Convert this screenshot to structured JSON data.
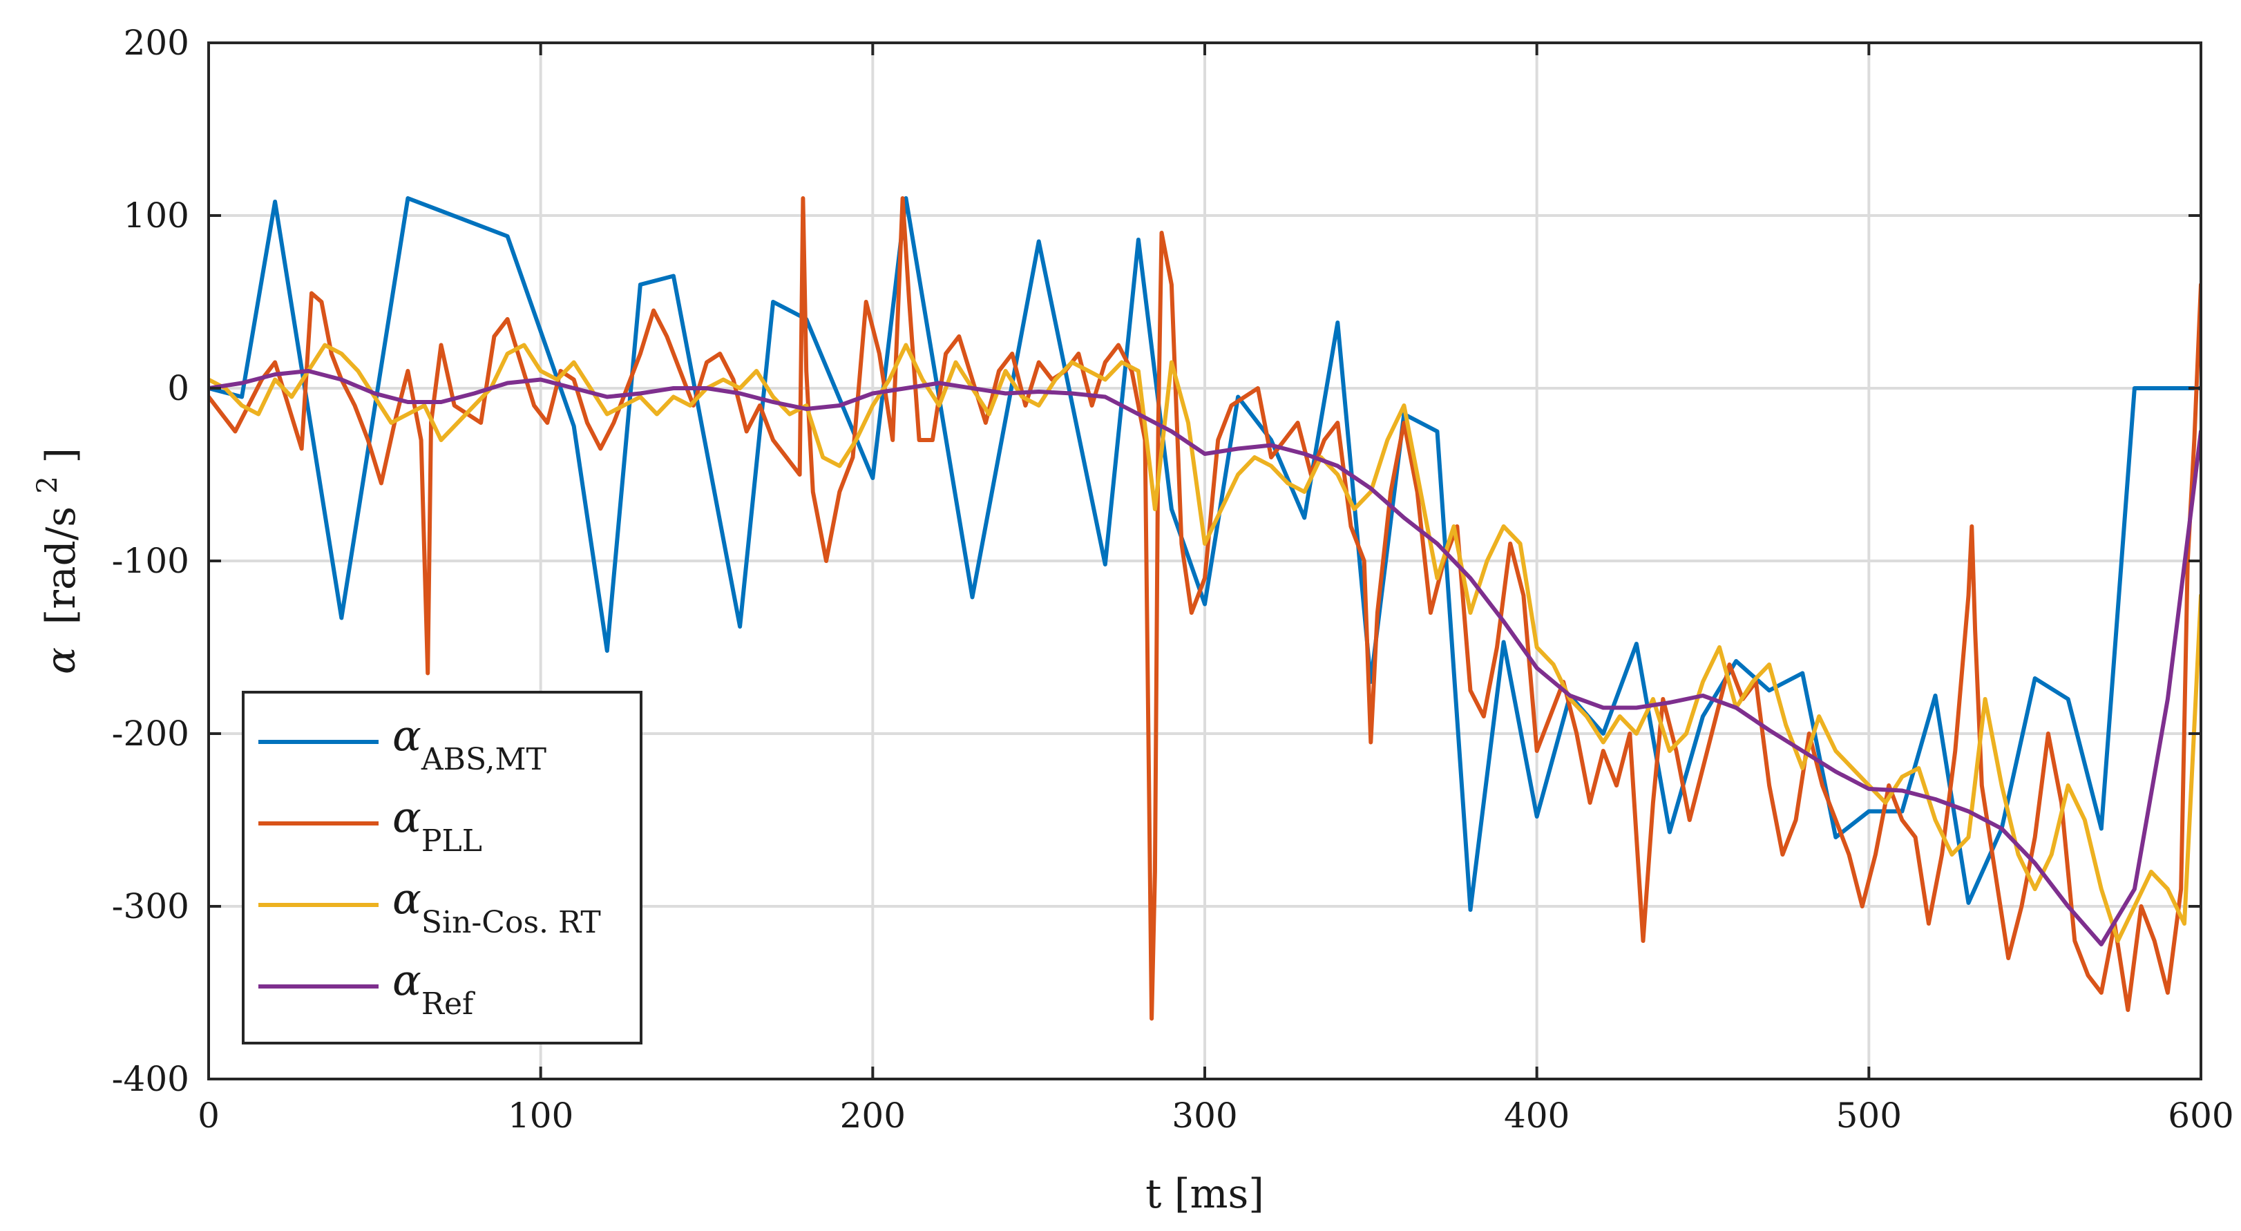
{
  "chart_data": {
    "type": "line",
    "title": "",
    "xlabel": "t [ms]",
    "ylabel": "α [rad/s²]",
    "ylabel_symbol": "α",
    "ylabel_units": "[rad/s",
    "ylabel_sup": "2",
    "ylabel_close": "]",
    "xlim": [
      0,
      600
    ],
    "ylim": [
      -400,
      200
    ],
    "xticks": [
      0,
      100,
      200,
      300,
      400,
      500,
      600
    ],
    "yticks": [
      200,
      100,
      0,
      -100,
      -200,
      -300,
      -400
    ],
    "xtick_labels": [
      "0",
      "100",
      "200",
      "300",
      "400",
      "500",
      "600"
    ],
    "ytick_labels": [
      "200",
      "100",
      "0",
      "-100",
      "-200",
      "-300",
      "-400"
    ],
    "grid": true,
    "legend_position": "bottom-left",
    "series": [
      {
        "name": "α ABS,MT",
        "symbol": "α",
        "subscript": "ABS,MT",
        "color": "#0072BD",
        "x": [
          0,
          10,
          20,
          40,
          60,
          90,
          110,
          120,
          130,
          140,
          160,
          170,
          180,
          200,
          210,
          230,
          250,
          270,
          280,
          290,
          300,
          310,
          320,
          330,
          340,
          350,
          360,
          370,
          380,
          390,
          400,
          410,
          420,
          430,
          440,
          450,
          460,
          470,
          480,
          490,
          500,
          510,
          520,
          530,
          540,
          550,
          560,
          570,
          580,
          590,
          600
        ],
        "y": [
          0,
          -5,
          108,
          -133,
          110,
          88,
          -22,
          -152,
          60,
          65,
          -138,
          50,
          40,
          -52,
          110,
          -121,
          85,
          -102,
          86,
          -70,
          -125,
          -5,
          -30,
          -75,
          38,
          -170,
          -15,
          -25,
          -302,
          -147,
          -248,
          -178,
          -200,
          -148,
          -257,
          -190,
          -158,
          -175,
          -165,
          -260,
          -245,
          -245,
          -178,
          -298,
          -255,
          -168,
          -180,
          -255,
          0,
          0,
          0
        ]
      },
      {
        "name": "α PLL",
        "symbol": "α",
        "subscript": "PLL",
        "color": "#D95319",
        "x": [
          0,
          4,
          8,
          12,
          16,
          20,
          24,
          28,
          31,
          34,
          37,
          40,
          44,
          48,
          52,
          56,
          60,
          64,
          66,
          67,
          70,
          74,
          78,
          82,
          86,
          90,
          94,
          98,
          102,
          106,
          110,
          114,
          118,
          122,
          126,
          130,
          134,
          138,
          142,
          146,
          150,
          154,
          158,
          162,
          166,
          170,
          174,
          178,
          179,
          180,
          182,
          186,
          190,
          194,
          198,
          202,
          206,
          209,
          211,
          214,
          218,
          222,
          226,
          230,
          234,
          238,
          242,
          246,
          250,
          254,
          258,
          262,
          266,
          270,
          274,
          278,
          282,
          284,
          285,
          286,
          287,
          290,
          293,
          296,
          300,
          304,
          308,
          312,
          316,
          320,
          324,
          328,
          332,
          336,
          340,
          344,
          348,
          350,
          352,
          356,
          360,
          364,
          368,
          372,
          376,
          380,
          384,
          388,
          392,
          396,
          400,
          404,
          408,
          412,
          416,
          420,
          424,
          428,
          432,
          435,
          438,
          442,
          446,
          450,
          454,
          458,
          462,
          466,
          470,
          474,
          478,
          482,
          486,
          490,
          494,
          498,
          502,
          506,
          510,
          514,
          518,
          522,
          526,
          530,
          531,
          532,
          534,
          538,
          542,
          546,
          550,
          554,
          558,
          562,
          566,
          570,
          574,
          578,
          582,
          586,
          590,
          594,
          596,
          598,
          600
        ],
        "y": [
          -5,
          -15,
          -25,
          -10,
          5,
          15,
          -10,
          -35,
          55,
          50,
          20,
          5,
          -10,
          -30,
          -55,
          -20,
          10,
          -30,
          -165,
          -20,
          25,
          -10,
          -15,
          -20,
          30,
          40,
          15,
          -10,
          -20,
          10,
          5,
          -20,
          -35,
          -20,
          0,
          20,
          45,
          30,
          10,
          -10,
          15,
          20,
          5,
          -25,
          -10,
          -30,
          -40,
          -50,
          110,
          10,
          -60,
          -100,
          -60,
          -40,
          50,
          20,
          -30,
          110,
          50,
          -30,
          -30,
          20,
          30,
          5,
          -20,
          10,
          20,
          -10,
          15,
          5,
          10,
          20,
          -10,
          15,
          25,
          10,
          -30,
          -365,
          -280,
          -20,
          90,
          60,
          -90,
          -130,
          -110,
          -30,
          -10,
          -5,
          0,
          -40,
          -30,
          -20,
          -50,
          -30,
          -20,
          -80,
          -100,
          -205,
          -130,
          -60,
          -20,
          -60,
          -130,
          -100,
          -80,
          -175,
          -190,
          -150,
          -90,
          -120,
          -210,
          -190,
          -170,
          -200,
          -240,
          -210,
          -230,
          -200,
          -320,
          -240,
          -180,
          -210,
          -250,
          -220,
          -190,
          -160,
          -180,
          -170,
          -230,
          -270,
          -250,
          -200,
          -230,
          -250,
          -270,
          -300,
          -270,
          -230,
          -250,
          -260,
          -310,
          -270,
          -210,
          -120,
          -80,
          -140,
          -230,
          -280,
          -330,
          -300,
          -260,
          -200,
          -240,
          -320,
          -340,
          -350,
          -310,
          -360,
          -300,
          -320,
          -350,
          -290,
          -100,
          -30,
          60
        ]
      },
      {
        "name": "α Sin-Cos. RT",
        "symbol": "α",
        "subscript": "Sin-Cos. RT",
        "color": "#EDB120",
        "x": [
          0,
          5,
          10,
          15,
          20,
          25,
          30,
          35,
          40,
          45,
          50,
          55,
          60,
          65,
          70,
          75,
          80,
          85,
          90,
          95,
          100,
          105,
          110,
          115,
          120,
          125,
          130,
          135,
          140,
          145,
          150,
          155,
          160,
          165,
          170,
          175,
          180,
          185,
          190,
          195,
          200,
          205,
          210,
          215,
          220,
          225,
          230,
          235,
          240,
          245,
          250,
          255,
          260,
          265,
          270,
          275,
          280,
          285,
          290,
          295,
          300,
          305,
          310,
          315,
          320,
          325,
          330,
          335,
          340,
          345,
          350,
          355,
          360,
          365,
          370,
          375,
          380,
          385,
          390,
          395,
          400,
          405,
          410,
          415,
          420,
          425,
          430,
          435,
          440,
          445,
          450,
          455,
          460,
          465,
          470,
          475,
          480,
          485,
          490,
          495,
          500,
          505,
          510,
          515,
          520,
          525,
          530,
          535,
          540,
          545,
          550,
          555,
          560,
          565,
          570,
          575,
          580,
          585,
          590,
          595,
          600
        ],
        "y": [
          5,
          0,
          -10,
          -15,
          5,
          -5,
          10,
          25,
          20,
          10,
          -5,
          -20,
          -15,
          -10,
          -30,
          -20,
          -10,
          0,
          20,
          25,
          10,
          5,
          15,
          0,
          -15,
          -10,
          -5,
          -15,
          -5,
          -10,
          0,
          5,
          0,
          10,
          -5,
          -15,
          -10,
          -40,
          -45,
          -30,
          -10,
          5,
          25,
          5,
          -10,
          15,
          0,
          -15,
          10,
          -5,
          -10,
          5,
          15,
          10,
          5,
          15,
          10,
          -70,
          15,
          -20,
          -90,
          -70,
          -50,
          -40,
          -45,
          -55,
          -60,
          -40,
          -50,
          -70,
          -60,
          -30,
          -10,
          -60,
          -110,
          -80,
          -130,
          -100,
          -80,
          -90,
          -150,
          -160,
          -180,
          -190,
          -205,
          -190,
          -200,
          -180,
          -210,
          -200,
          -170,
          -150,
          -185,
          -170,
          -160,
          -195,
          -220,
          -190,
          -210,
          -220,
          -230,
          -240,
          -225,
          -220,
          -250,
          -270,
          -260,
          -180,
          -230,
          -270,
          -290,
          -270,
          -230,
          -250,
          -290,
          -320,
          -300,
          -280,
          -290,
          -310,
          -120
        ]
      },
      {
        "name": "α Ref",
        "symbol": "α",
        "subscript": "Ref",
        "color": "#7E2F8E",
        "x": [
          0,
          10,
          20,
          30,
          40,
          50,
          60,
          70,
          80,
          90,
          100,
          110,
          120,
          130,
          140,
          150,
          160,
          170,
          180,
          190,
          200,
          210,
          220,
          230,
          240,
          250,
          260,
          270,
          280,
          290,
          300,
          310,
          320,
          330,
          340,
          350,
          360,
          370,
          380,
          390,
          400,
          410,
          420,
          430,
          440,
          450,
          460,
          470,
          480,
          490,
          500,
          510,
          520,
          530,
          540,
          550,
          560,
          570,
          580,
          590,
          600
        ],
        "y": [
          0,
          3,
          8,
          10,
          5,
          -3,
          -8,
          -8,
          -3,
          3,
          5,
          0,
          -5,
          -3,
          0,
          0,
          -3,
          -8,
          -12,
          -10,
          -3,
          0,
          3,
          0,
          -3,
          -2,
          -3,
          -5,
          -15,
          -25,
          -38,
          -35,
          -33,
          -38,
          -45,
          -58,
          -75,
          -90,
          -110,
          -135,
          -162,
          -178,
          -185,
          -185,
          -182,
          -178,
          -185,
          -198,
          -210,
          -222,
          -232,
          -233,
          -238,
          -245,
          -255,
          -275,
          -300,
          -322,
          -290,
          -180,
          -25
        ]
      }
    ]
  }
}
